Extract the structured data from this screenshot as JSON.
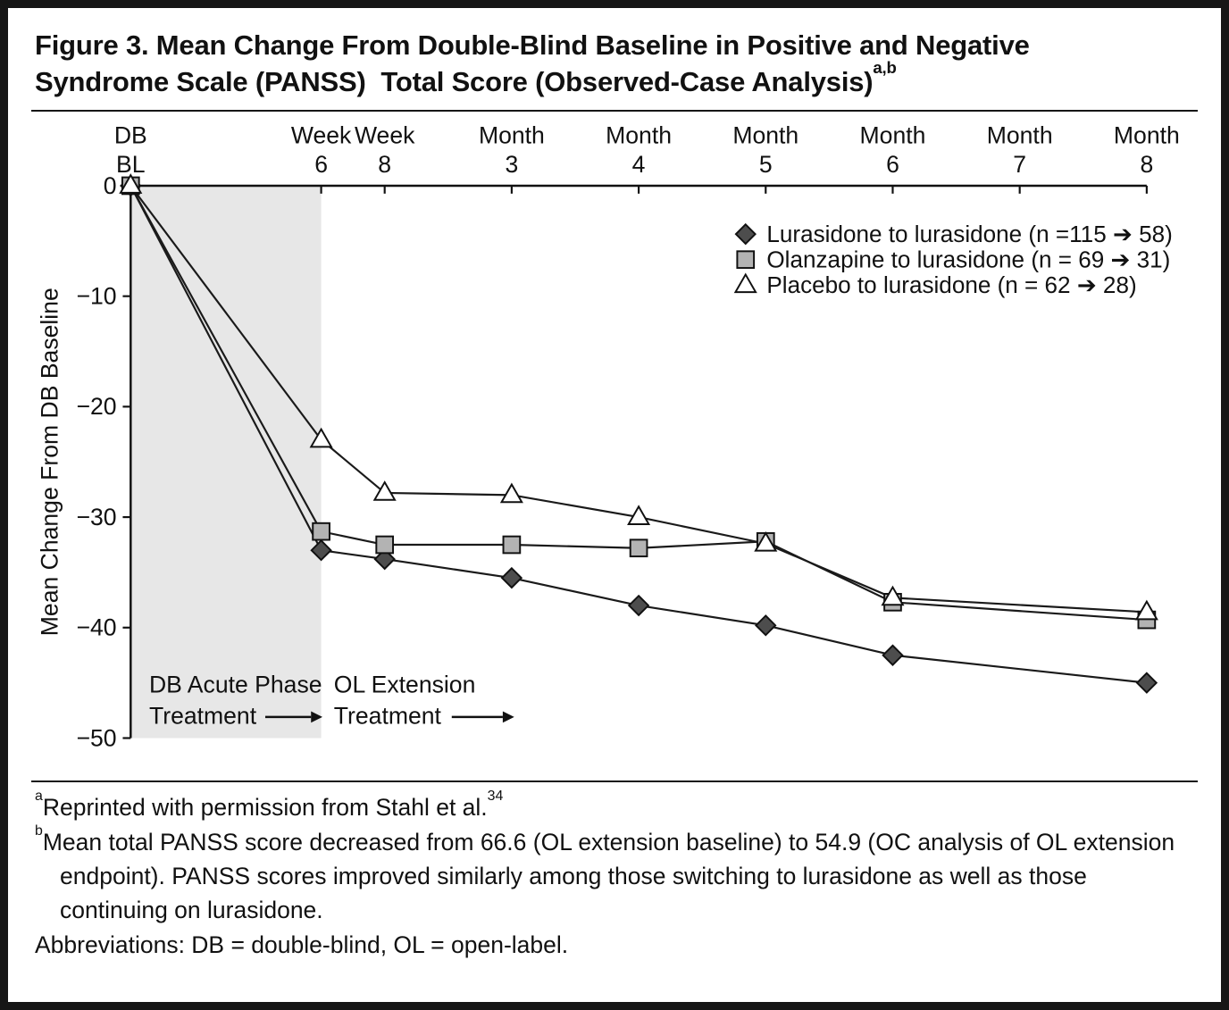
{
  "figure": {
    "title": "Figure 3. Mean Change From Double-Blind Baseline in Positive and Negative\nSyndrome Scale (PANSS)  Total Score (Observed-Case Analysis)",
    "title_superscript": "a,b"
  },
  "chart_data": {
    "type": "line",
    "title": "Mean Change From Double-Blind Baseline in PANSS Total Score (Observed-Case Analysis)",
    "x_axis": {
      "tick_labels_line1": [
        "DB",
        "Week",
        "Week",
        "Month",
        "Month",
        "Month",
        "Month",
        "Month",
        "Month"
      ],
      "tick_labels_line2": [
        "BL",
        "6",
        "8",
        "3",
        "4",
        "5",
        "6",
        "7",
        "8"
      ],
      "x_weeks": [
        0,
        6,
        8,
        12,
        16,
        20,
        24,
        28,
        32
      ]
    },
    "y_axis": {
      "label": "Mean Change From DB Baseline",
      "ticks": [
        0,
        -10,
        -20,
        -30,
        -40,
        -50
      ],
      "tick_labels": [
        "0",
        "−10",
        "−20",
        "−30",
        "−40",
        "−50"
      ],
      "range": [
        0,
        -50
      ]
    },
    "series": [
      {
        "name": "Lurasidone to lurasidone (n =115 ➔ 58)",
        "marker": "diamond",
        "fill": "#4d4d4d",
        "values": [
          0,
          -33,
          -33.8,
          -35.5,
          -38,
          -39.8,
          -42.5,
          null,
          -45
        ]
      },
      {
        "name": "Olanzapine to lurasidone (n = 69 ➔ 31)",
        "marker": "square",
        "fill": "#b3b3b3",
        "values": [
          0,
          -31.3,
          -32.5,
          -32.5,
          -32.8,
          -32.2,
          -37.7,
          null,
          -39.3
        ]
      },
      {
        "name": "Placebo to lurasidone (n = 62 ➔ 28)",
        "marker": "triangle",
        "fill": "#ffffff",
        "values": [
          0,
          -23,
          -27.8,
          -28,
          -30,
          -32.4,
          -37.3,
          null,
          -38.6
        ]
      }
    ],
    "shaded_region": {
      "x_start_weeks": 0,
      "x_end_weeks": 6,
      "color": "#e7e7e7"
    },
    "annotations": [
      {
        "line1": "DB Acute Phase",
        "line2": "Treatment",
        "arrow": true
      },
      {
        "line1": "OL Extension",
        "line2": "Treatment",
        "arrow": true
      }
    ],
    "legend_position": "top-right-inside",
    "grid": false,
    "line_color": "#1a1a1a"
  },
  "footnotes": {
    "a_sup": "a",
    "a_text": "Reprinted with permission from Stahl et al.",
    "a_ref_sup": "34",
    "b_sup": "b",
    "b_text": "Mean total PANSS score decreased from 66.6 (OL extension baseline) to 54.9 (OC analysis of OL extension endpoint). PANSS scores improved similarly among those switching to lurasidone as well as those continuing on lurasidone.",
    "abbreviations": "Abbreviations: DB = double-blind, OL = open-label."
  }
}
